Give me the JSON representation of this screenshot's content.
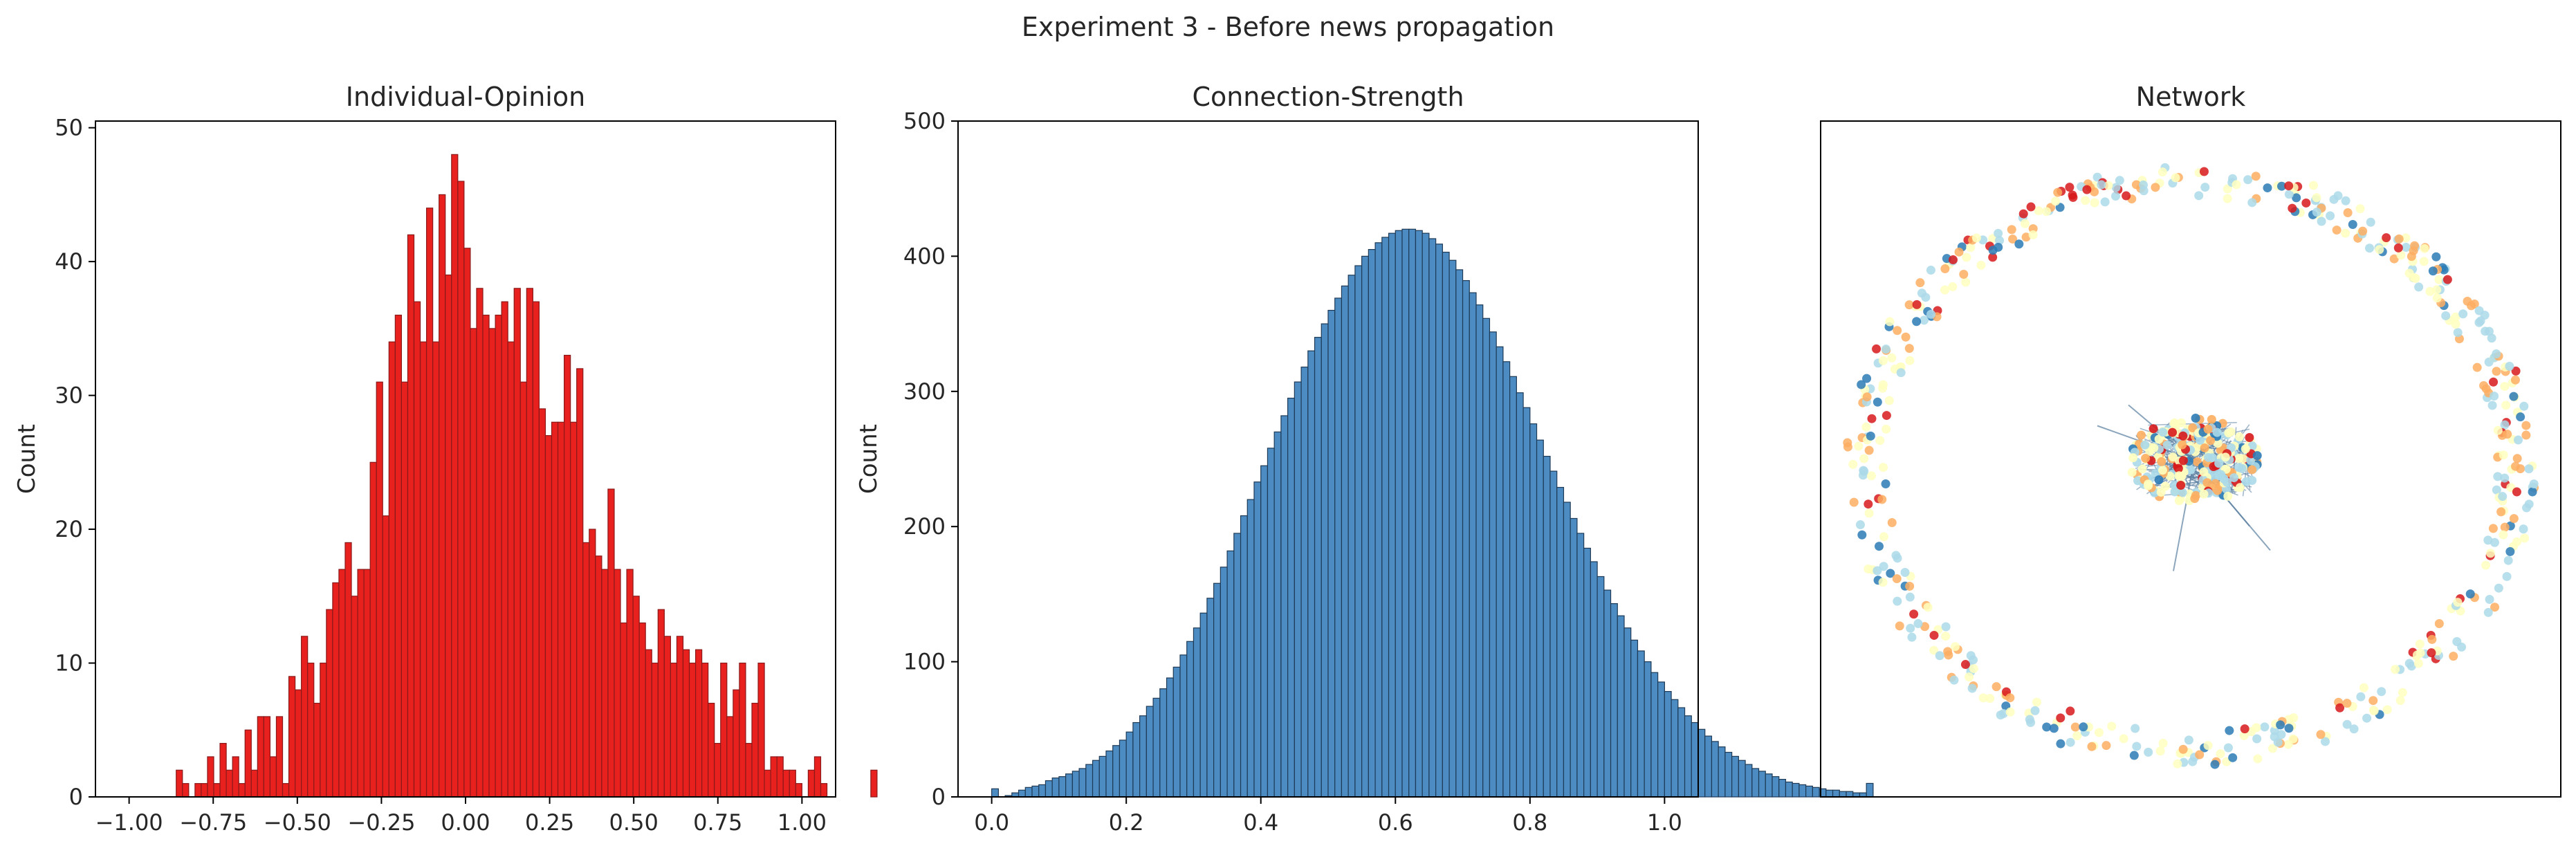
{
  "suptitle": "Experiment 3 - Before news propagation",
  "chart_data": [
    {
      "type": "bar",
      "title": "Individual-Opinion",
      "xlabel": "",
      "ylabel": "Count",
      "xlim": [
        -1.1,
        1.1
      ],
      "ylim": [
        0,
        50.5
      ],
      "x_ticks": [
        -1.0,
        -0.75,
        -0.5,
        -0.25,
        0.0,
        0.25,
        0.5,
        0.75,
        1.0
      ],
      "x_tick_labels": [
        "−1.00",
        "−0.75",
        "−0.50",
        "−0.25",
        "0.00",
        "0.25",
        "0.50",
        "0.75",
        "1.00"
      ],
      "y_ticks": [
        0,
        10,
        20,
        30,
        40,
        50
      ],
      "y_tick_labels": [
        "0",
        "10",
        "20",
        "30",
        "40",
        "50"
      ],
      "color": "#e8201e",
      "edge_color": "#8a1a1a",
      "bin_start": -0.86,
      "bin_width": 0.0186,
      "values": [
        2,
        1,
        0,
        1,
        1,
        3,
        1,
        4,
        2,
        3,
        1,
        5,
        2,
        6,
        6,
        3,
        6,
        1,
        9,
        8,
        12,
        10,
        7,
        10,
        14,
        16,
        17,
        19,
        15,
        17,
        17,
        25,
        31,
        21,
        34,
        36,
        31,
        42,
        37,
        34,
        44,
        34,
        45,
        39,
        48,
        46,
        41,
        35,
        38,
        36,
        35,
        36,
        37,
        34,
        38,
        31,
        38,
        37,
        29,
        27,
        28,
        28,
        33,
        28,
        32,
        19,
        20,
        18,
        17,
        23,
        17,
        13,
        17,
        15,
        13,
        11,
        10,
        14,
        12,
        10,
        12,
        11,
        10,
        11,
        10,
        7,
        4,
        10,
        6,
        8,
        10,
        4,
        7,
        10,
        2,
        3,
        3,
        2,
        2,
        1,
        0,
        2,
        3,
        1,
        0,
        0,
        0,
        0,
        0,
        0,
        0,
        2
      ]
    },
    {
      "type": "bar",
      "title": "Connection-Strength",
      "xlabel": "",
      "ylabel": "Count",
      "xlim": [
        -0.05,
        1.05
      ],
      "ylim": [
        0,
        500
      ],
      "x_ticks": [
        0.0,
        0.2,
        0.4,
        0.6,
        0.8,
        1.0
      ],
      "x_tick_labels": [
        "0.0",
        "0.2",
        "0.4",
        "0.6",
        "0.8",
        "1.0"
      ],
      "y_ticks": [
        0,
        100,
        200,
        300,
        400,
        500
      ],
      "y_tick_labels": [
        "0",
        "100",
        "200",
        "300",
        "400",
        "500"
      ],
      "color": "#4c8cc2",
      "edge_color": "#1e3a56",
      "bin_start": 0.0,
      "bin_width": 0.01,
      "values": [
        6,
        0,
        1,
        3,
        5,
        7,
        8,
        9,
        12,
        14,
        15,
        17,
        19,
        21,
        24,
        27,
        30,
        34,
        38,
        42,
        48,
        55,
        60,
        67,
        73,
        80,
        88,
        96,
        105,
        115,
        125,
        136,
        147,
        158,
        170,
        182,
        195,
        208,
        220,
        233,
        245,
        258,
        270,
        282,
        295,
        307,
        318,
        330,
        340,
        350,
        360,
        369,
        378,
        386,
        393,
        400,
        405,
        410,
        414,
        417,
        419,
        420,
        420,
        419,
        417,
        413,
        409,
        403,
        397,
        390,
        382,
        373,
        364,
        354,
        344,
        333,
        322,
        311,
        299,
        288,
        276,
        264,
        252,
        241,
        229,
        218,
        206,
        195,
        184,
        174,
        163,
        153,
        143,
        134,
        125,
        116,
        108,
        100,
        92,
        85,
        78,
        72,
        66,
        60,
        55,
        50,
        45,
        41,
        37,
        33,
        30,
        27,
        24,
        21,
        19,
        17,
        15,
        13,
        11,
        10,
        9,
        8,
        7,
        6,
        5,
        5,
        4,
        4,
        3,
        3,
        10
      ]
    },
    {
      "type": "scatter",
      "title": "Network",
      "xlabel": "",
      "ylabel": "",
      "ring": {
        "center": [
          0,
          0
        ],
        "radius": 1.0
      },
      "palette": [
        "#d7191c",
        "#fdae61",
        "#ffffbf",
        "#abd9e9",
        "#2c7bb6"
      ]
    }
  ]
}
